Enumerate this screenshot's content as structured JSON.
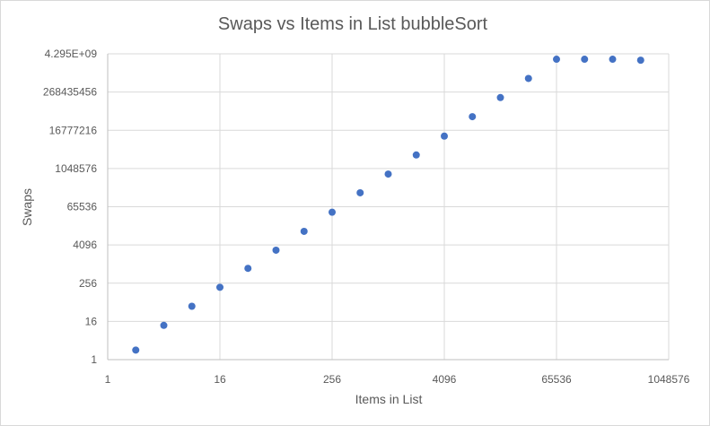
{
  "chart_data": {
    "type": "scatter",
    "title": "Swaps vs Items in List bubbleSort",
    "xlabel": "Items in List",
    "ylabel": "Swaps",
    "x_scale": "log2",
    "y_scale": "log2",
    "xlim": [
      1,
      1048576
    ],
    "ylim": [
      1,
      4294967296
    ],
    "x_ticks": [
      {
        "value": 1,
        "label": "1"
      },
      {
        "value": 16,
        "label": "16"
      },
      {
        "value": 256,
        "label": "256"
      },
      {
        "value": 4096,
        "label": "4096"
      },
      {
        "value": 65536,
        "label": "65536"
      },
      {
        "value": 1048576,
        "label": "1048576"
      }
    ],
    "y_ticks": [
      {
        "value": 1,
        "label": "1"
      },
      {
        "value": 16,
        "label": "16"
      },
      {
        "value": 256,
        "label": "256"
      },
      {
        "value": 4096,
        "label": "4096"
      },
      {
        "value": 65536,
        "label": "65536"
      },
      {
        "value": 1048576,
        "label": "1048576"
      },
      {
        "value": 16777216,
        "label": "16777216"
      },
      {
        "value": 268435456,
        "label": "268435456"
      },
      {
        "value": 4294967296,
        "label": "4.295E+09"
      }
    ],
    "grid": true,
    "legend": "none",
    "marker_color": "#4472C4",
    "series": [
      {
        "x": [
          2,
          4,
          8,
          16,
          32,
          64,
          128,
          256,
          512,
          1024,
          2048,
          4096,
          8192,
          16384,
          32768,
          65536,
          131072,
          262144,
          524288
        ],
        "y": [
          2,
          12,
          48,
          190,
          750,
          2800,
          11000,
          44000,
          180000,
          700000,
          2800000,
          11000000,
          45000000,
          180000000,
          720000000,
          2900000000,
          2900000000,
          2900000000,
          2700000000
        ]
      }
    ]
  }
}
